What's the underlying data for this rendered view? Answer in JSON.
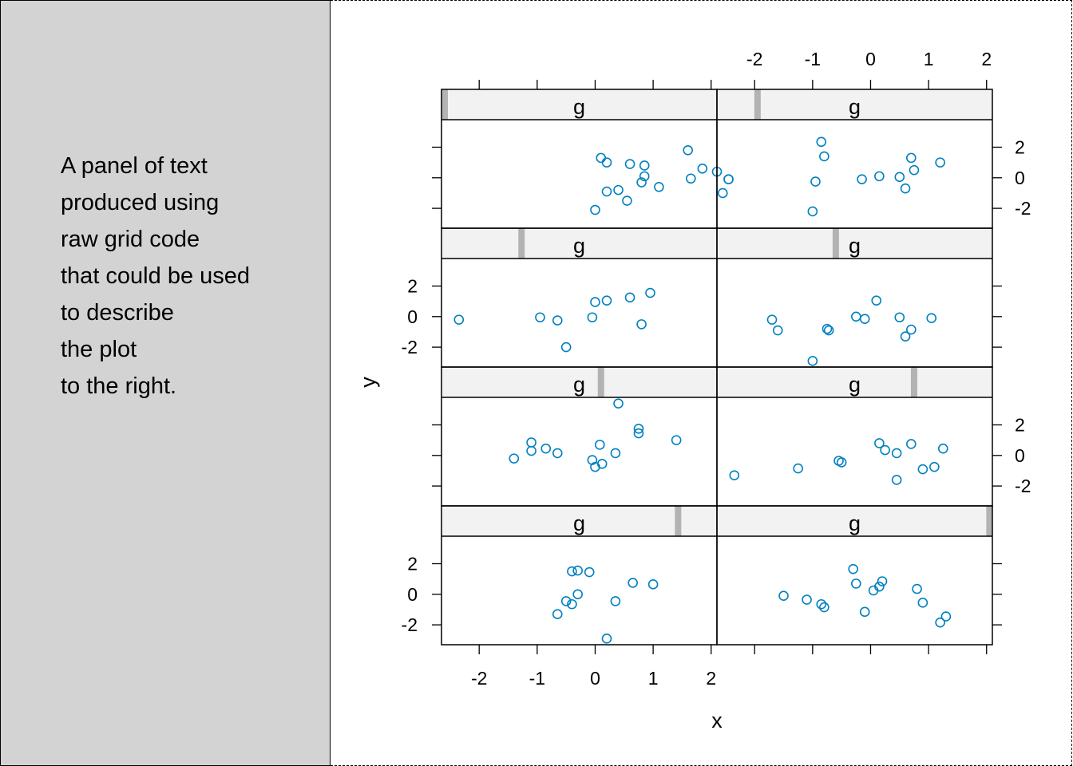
{
  "text_panel": {
    "lines": [
      "A panel of text",
      "produced using",
      "raw grid code",
      "that could be used",
      "to describe",
      "the plot",
      "to the right."
    ]
  },
  "chart_data": {
    "type": "scatter",
    "layout": "lattice 2 columns x 4 rows",
    "xlabel": "x",
    "ylabel": "y",
    "xlim": [
      -2.65,
      2.1
    ],
    "ylim": [
      -3.3,
      3.8
    ],
    "x_ticks": [
      -2,
      -1,
      0,
      1,
      2
    ],
    "y_ticks": [
      -2,
      0,
      2
    ],
    "strip_label": "g",
    "colors": {
      "point": "#0080c0",
      "strip_bg": "#f2f2f2",
      "strip_marker": "#b3b3b3",
      "left_panel_bg": "#d3d3d3"
    },
    "panels": [
      {
        "row": 0,
        "col": 0,
        "g": -2.62,
        "points": [
          [
            2.3,
            -0.1
          ],
          [
            2.3,
            -0.1
          ],
          [
            2.1,
            0.4
          ],
          [
            2.2,
            -1.0
          ],
          [
            1.6,
            1.8
          ],
          [
            0.6,
            0.9
          ],
          [
            0.1,
            1.3
          ],
          [
            0.2,
            1.0
          ],
          [
            0.2,
            -0.9
          ],
          [
            0.4,
            -0.8
          ],
          [
            0.55,
            -1.5
          ],
          [
            0.8,
            -0.3
          ],
          [
            0.85,
            0.1
          ],
          [
            0.85,
            0.8
          ],
          [
            1.1,
            -0.6
          ],
          [
            1.65,
            -0.05
          ],
          [
            1.85,
            0.6
          ],
          [
            0.0,
            -2.1
          ]
        ]
      },
      {
        "row": 0,
        "col": 1,
        "g": -1.95,
        "points": [
          [
            -1.0,
            -2.2
          ],
          [
            -0.95,
            -0.25
          ],
          [
            -0.85,
            2.35
          ],
          [
            -0.8,
            1.4
          ],
          [
            -0.15,
            -0.1
          ],
          [
            0.15,
            0.1
          ],
          [
            0.5,
            0.05
          ],
          [
            0.6,
            -0.7
          ],
          [
            0.7,
            1.3
          ],
          [
            0.75,
            0.5
          ],
          [
            1.2,
            1.0
          ]
        ]
      },
      {
        "row": 1,
        "col": 0,
        "g": -1.27,
        "points": [
          [
            -2.35,
            -0.2
          ],
          [
            -0.95,
            -0.05
          ],
          [
            -0.65,
            -0.25
          ],
          [
            -0.5,
            -2.0
          ],
          [
            -0.05,
            -0.05
          ],
          [
            0.0,
            0.95
          ],
          [
            0.2,
            1.05
          ],
          [
            0.6,
            1.25
          ],
          [
            0.8,
            -0.5
          ],
          [
            0.95,
            1.55
          ]
        ]
      },
      {
        "row": 1,
        "col": 1,
        "g": -0.6,
        "points": [
          [
            -1.7,
            -0.2
          ],
          [
            -1.6,
            -0.9
          ],
          [
            -1.0,
            -2.9
          ],
          [
            -0.75,
            -0.8
          ],
          [
            -0.72,
            -0.9
          ],
          [
            -0.25,
            0.0
          ],
          [
            -0.1,
            -0.15
          ],
          [
            0.1,
            1.05
          ],
          [
            0.5,
            -0.05
          ],
          [
            0.6,
            -1.3
          ],
          [
            0.7,
            -0.85
          ],
          [
            1.05,
            -0.1
          ]
        ]
      },
      {
        "row": 2,
        "col": 0,
        "g": 0.1,
        "points": [
          [
            -1.4,
            -0.2
          ],
          [
            -1.1,
            0.85
          ],
          [
            -1.1,
            0.3
          ],
          [
            -0.85,
            0.45
          ],
          [
            -0.65,
            0.15
          ],
          [
            -0.05,
            -0.3
          ],
          [
            0.0,
            -0.75
          ],
          [
            0.08,
            0.7
          ],
          [
            0.12,
            -0.55
          ],
          [
            0.35,
            0.15
          ],
          [
            0.4,
            3.4
          ],
          [
            0.75,
            1.75
          ],
          [
            0.75,
            1.45
          ],
          [
            1.4,
            1.0
          ]
        ]
      },
      {
        "row": 2,
        "col": 1,
        "g": 0.75,
        "points": [
          [
            -2.35,
            -1.3
          ],
          [
            -1.25,
            -0.85
          ],
          [
            -0.55,
            -0.35
          ],
          [
            -0.5,
            -0.45
          ],
          [
            0.15,
            0.8
          ],
          [
            0.25,
            0.35
          ],
          [
            0.45,
            0.15
          ],
          [
            0.45,
            -1.6
          ],
          [
            0.7,
            0.75
          ],
          [
            0.9,
            -0.9
          ],
          [
            1.1,
            -0.75
          ],
          [
            1.25,
            0.45
          ]
        ]
      },
      {
        "row": 3,
        "col": 0,
        "g": 1.43,
        "points": [
          [
            -0.65,
            -1.3
          ],
          [
            -0.5,
            -0.45
          ],
          [
            -0.4,
            1.5
          ],
          [
            -0.4,
            -0.65
          ],
          [
            -0.3,
            1.55
          ],
          [
            -0.3,
            0.0
          ],
          [
            -0.1,
            1.45
          ],
          [
            0.2,
            -2.9
          ],
          [
            0.35,
            -0.45
          ],
          [
            0.65,
            0.75
          ],
          [
            1.0,
            0.65
          ]
        ]
      },
      {
        "row": 3,
        "col": 1,
        "g": 2.05,
        "points": [
          [
            -1.5,
            -0.1
          ],
          [
            -1.1,
            -0.35
          ],
          [
            -0.85,
            -0.65
          ],
          [
            -0.8,
            -0.85
          ],
          [
            -0.3,
            1.65
          ],
          [
            -0.25,
            0.7
          ],
          [
            -0.1,
            -1.15
          ],
          [
            0.05,
            0.25
          ],
          [
            0.15,
            0.5
          ],
          [
            0.2,
            0.85
          ],
          [
            0.8,
            0.35
          ],
          [
            0.9,
            -0.55
          ],
          [
            1.2,
            -1.85
          ],
          [
            1.3,
            -1.45
          ]
        ]
      }
    ]
  }
}
